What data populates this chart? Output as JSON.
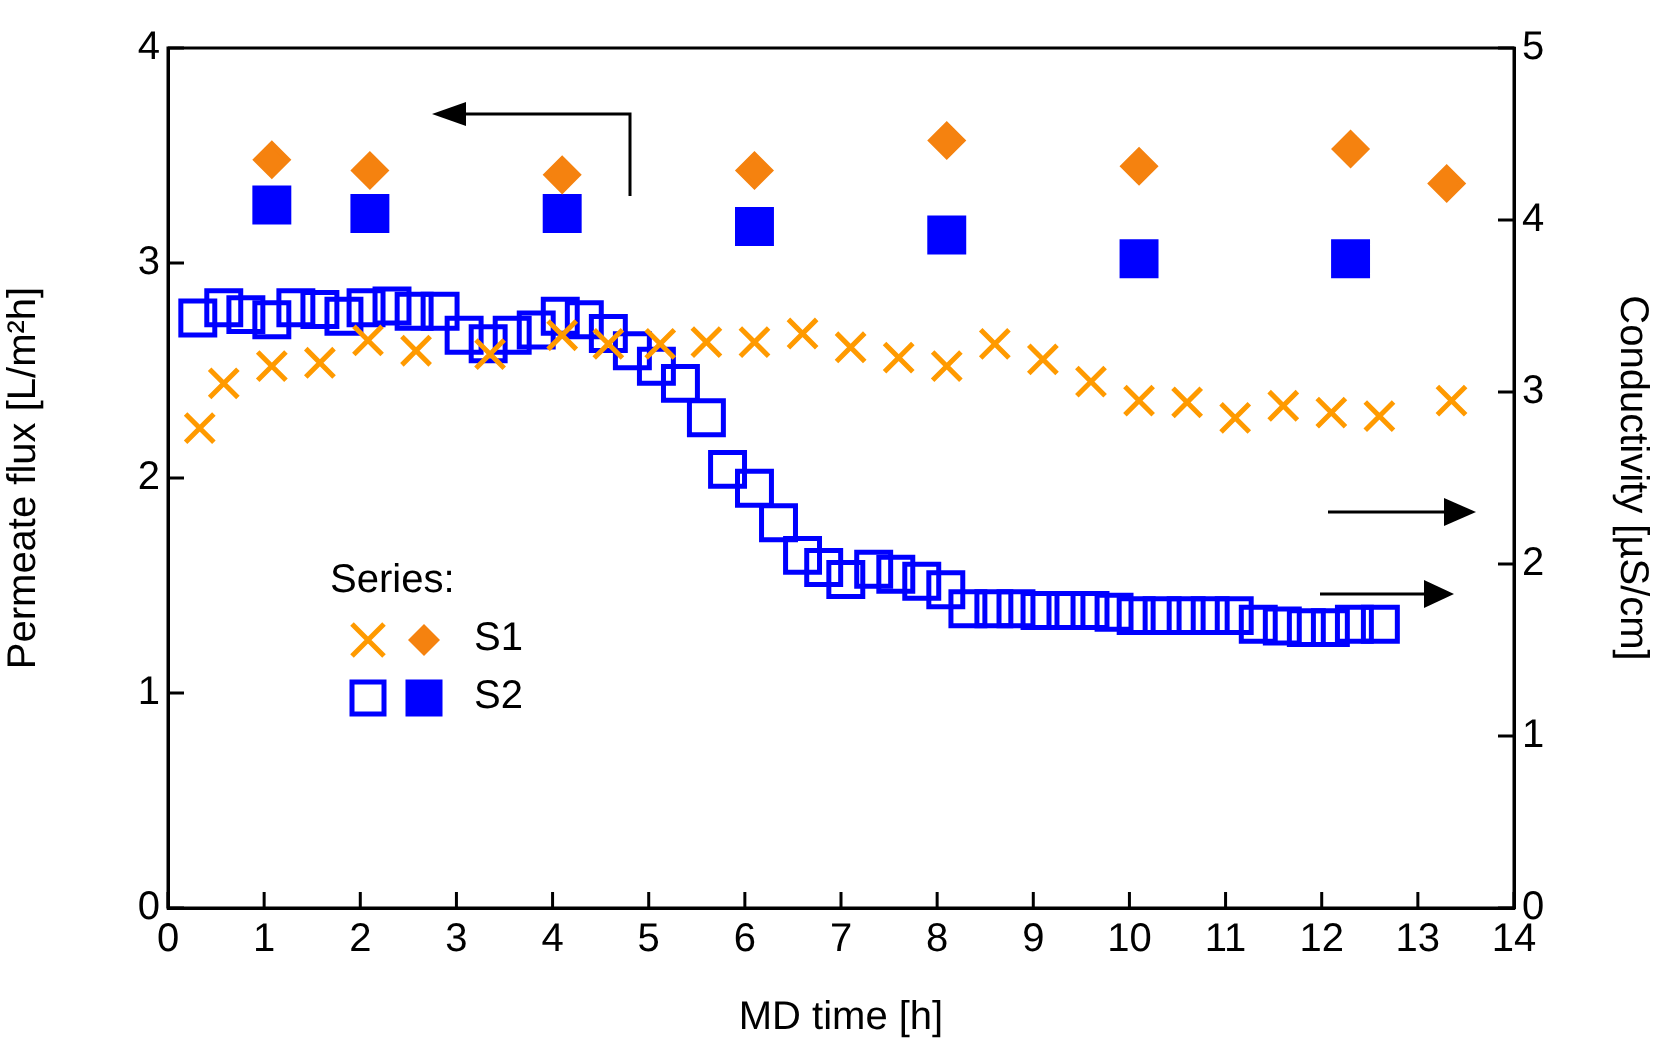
{
  "chart_data": {
    "type": "scatter",
    "xlabel": "MD time [h]",
    "ylabel": "Permeate flux [L/m²h]",
    "y2label": "Conductivity [µS/cm]",
    "legend_title": "Series:",
    "legend": "left",
    "grid": false,
    "xlim": [
      0,
      14
    ],
    "xticks": [
      0,
      1,
      2,
      3,
      4,
      5,
      6,
      7,
      8,
      9,
      10,
      11,
      12,
      13,
      14
    ],
    "ylim": [
      0,
      4
    ],
    "yticks": [
      0,
      1,
      2,
      3,
      4
    ],
    "y2lim": [
      0,
      5
    ],
    "y2ticks": [
      0,
      1,
      2,
      3,
      4,
      5
    ],
    "series": [
      {
        "color": "#ff9a00",
        "marker": "cross",
        "axis": "y2",
        "x": [
          0.33,
          0.58,
          1.08,
          1.58,
          2.08,
          2.58,
          3.35,
          4.1,
          4.58,
          5.12,
          5.6,
          6.1,
          6.6,
          7.1,
          7.6,
          8.1,
          8.6,
          9.1,
          9.6,
          10.1,
          10.6,
          11.1,
          11.6,
          12.1,
          12.6,
          13.35
        ],
        "values": [
          2.79,
          3.05,
          3.15,
          3.17,
          3.3,
          3.24,
          3.22,
          3.33,
          3.28,
          3.28,
          3.29,
          3.29,
          3.34,
          3.26,
          3.2,
          3.15,
          3.28,
          3.19,
          3.06,
          2.95,
          2.94,
          2.85,
          2.92,
          2.88,
          2.86,
          2.95
        ]
      },
      {
        "name": "S1",
        "color": "#f5820f",
        "marker": "diamond",
        "axis": "y",
        "x": [
          1.08,
          2.1,
          4.1,
          6.1,
          8.1,
          10.1,
          12.3,
          13.3
        ],
        "values": [
          3.48,
          3.43,
          3.41,
          3.43,
          3.57,
          3.45,
          3.53,
          3.37
        ]
      },
      {
        "color": "#0000ff",
        "marker": "square",
        "axis": "y2",
        "x": [
          0.31,
          0.58,
          0.81,
          1.08,
          1.33,
          1.58,
          1.83,
          2.06,
          2.33,
          2.56,
          2.83,
          3.08,
          3.33,
          3.58,
          3.83,
          4.08,
          4.33,
          4.58,
          4.83,
          5.08,
          5.33,
          5.6,
          5.82,
          6.1,
          6.35,
          6.6,
          6.82,
          7.05,
          7.34,
          7.57,
          7.84,
          8.09,
          8.32,
          8.59,
          8.82,
          9.07,
          9.34,
          9.59,
          9.84,
          10.07,
          10.34,
          10.59,
          10.84,
          11.09,
          11.34,
          11.59,
          11.84,
          12.09,
          12.34,
          12.61
        ],
        "values": [
          3.43,
          3.49,
          3.45,
          3.42,
          3.49,
          3.48,
          3.44,
          3.49,
          3.5,
          3.47,
          3.47,
          3.33,
          3.28,
          3.33,
          3.36,
          3.44,
          3.42,
          3.34,
          3.24,
          3.15,
          3.05,
          2.85,
          2.55,
          2.44,
          2.24,
          2.05,
          1.98,
          1.91,
          1.97,
          1.94,
          1.9,
          1.85,
          1.74,
          1.74,
          1.74,
          1.73,
          1.73,
          1.73,
          1.72,
          1.7,
          1.7,
          1.7,
          1.7,
          1.7,
          1.65,
          1.64,
          1.63,
          1.63,
          1.65,
          1.65
        ]
      },
      {
        "name": "S2",
        "color": "#0000ff",
        "marker": "square",
        "axis": "y",
        "x": [
          1.08,
          2.1,
          4.1,
          6.1,
          8.1,
          10.1,
          12.3
        ],
        "values": [
          3.27,
          3.23,
          3.23,
          3.17,
          3.13,
          3.02,
          3.02
        ]
      }
    ]
  }
}
